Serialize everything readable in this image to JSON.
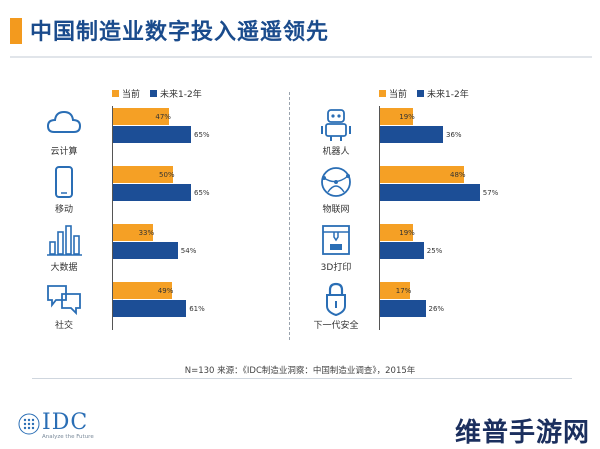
{
  "title": "中国制造业数字投入遥遥领先",
  "colors": {
    "current": "#f5a025",
    "future": "#1c4e96",
    "title": "#1a4b8c",
    "accent": "#f39a1e"
  },
  "chart_data": [
    {
      "type": "bar",
      "orientation": "horizontal",
      "categories": [
        "云计算",
        "移动",
        "大数据",
        "社交"
      ],
      "icons": [
        "cloud-icon",
        "mobile-icon",
        "bar-chart-icon",
        "chat-bubbles-icon"
      ],
      "series": [
        {
          "name": "当前",
          "values": [
            47,
            50,
            33,
            49
          ],
          "labels": [
            "47%",
            "50%",
            "33%",
            "49%"
          ]
        },
        {
          "name": "未来1-2年",
          "values": [
            65,
            65,
            54,
            61
          ],
          "labels": [
            "65%",
            "65%",
            "54%",
            "61%"
          ]
        }
      ],
      "xlim": [
        0,
        100
      ],
      "legend": "top",
      "grid": false
    },
    {
      "type": "bar",
      "orientation": "horizontal",
      "categories": [
        "机器人",
        "物联网",
        "3D打印",
        "下一代安全"
      ],
      "icons": [
        "robot-icon",
        "globe-network-icon",
        "printer-3d-icon",
        "lock-icon"
      ],
      "series": [
        {
          "name": "当前",
          "values": [
            19,
            48,
            19,
            17
          ],
          "labels": [
            "19%",
            "48%",
            "19%",
            "17%"
          ]
        },
        {
          "name": "未来1-2年",
          "values": [
            36,
            57,
            25,
            26
          ],
          "labels": [
            "36%",
            "57%",
            "25%",
            "26%"
          ]
        }
      ],
      "xlim": [
        0,
        100
      ],
      "legend": "top",
      "grid": false
    }
  ],
  "footnote": "N=130  来源：《IDC制造业洞察：中国制造业调查》，2015年",
  "logo": {
    "text": "IDC",
    "tagline": "Analyze the Future"
  },
  "watermark": "维普手游网"
}
